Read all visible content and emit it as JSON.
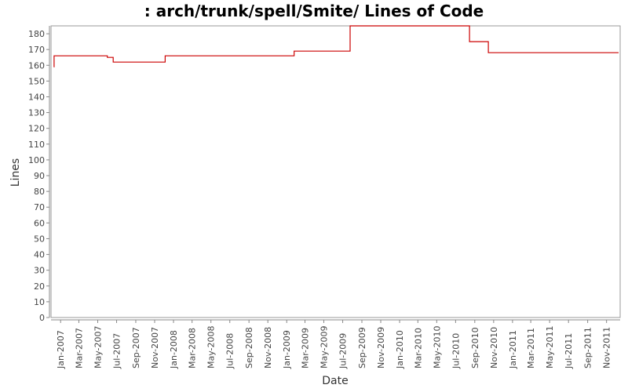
{
  "chart_data": {
    "type": "line",
    "title": ": arch/trunk/spell/Smite/ Lines of Code",
    "xlabel": "Date",
    "ylabel": "Lines",
    "ylim": [
      0,
      185
    ],
    "y_ticks": [
      0,
      10,
      20,
      30,
      40,
      50,
      60,
      70,
      80,
      90,
      100,
      110,
      120,
      130,
      140,
      150,
      160,
      170,
      180
    ],
    "x_ticks": [
      "Jan-2007",
      "Mar-2007",
      "May-2007",
      "Jul-2007",
      "Sep-2007",
      "Nov-2007",
      "Jan-2008",
      "Mar-2008",
      "May-2008",
      "Jul-2008",
      "Sep-2008",
      "Nov-2008",
      "Jan-2009",
      "Mar-2009",
      "May-2009",
      "Jul-2009",
      "Sep-2009",
      "Nov-2009",
      "Jan-2010",
      "Mar-2010",
      "May-2010",
      "Jul-2010",
      "Sep-2010",
      "Nov-2010",
      "Jan-2011",
      "Mar-2011",
      "May-2011",
      "Jul-2011",
      "Sep-2011",
      "Nov-2011"
    ],
    "x_tick_dates": [
      "2007-01-01",
      "2007-03-01",
      "2007-05-01",
      "2007-07-01",
      "2007-09-01",
      "2007-11-01",
      "2008-01-01",
      "2008-03-01",
      "2008-05-01",
      "2008-07-01",
      "2008-09-01",
      "2008-11-01",
      "2009-01-01",
      "2009-03-01",
      "2009-05-01",
      "2009-07-01",
      "2009-09-01",
      "2009-11-01",
      "2010-01-01",
      "2010-03-01",
      "2010-05-01",
      "2010-07-01",
      "2010-09-01",
      "2010-11-01",
      "2011-01-01",
      "2011-03-01",
      "2011-05-01",
      "2011-07-01",
      "2011-09-01",
      "2011-11-01"
    ],
    "xlim": [
      "2006-12-01",
      "2011-12-15"
    ],
    "grid": false,
    "series": [
      {
        "step": true,
        "color": "#cc0000",
        "points": [
          {
            "x": "2006-12-10",
            "y": 159
          },
          {
            "x": "2006-12-11",
            "y": 166
          },
          {
            "x": "2007-06-01",
            "y": 165
          },
          {
            "x": "2007-06-20",
            "y": 162
          },
          {
            "x": "2007-12-05",
            "y": 166
          },
          {
            "x": "2009-01-25",
            "y": 169
          },
          {
            "x": "2009-07-25",
            "y": 185
          },
          {
            "x": "2010-08-15",
            "y": 175
          },
          {
            "x": "2010-10-15",
            "y": 168
          },
          {
            "x": "2011-12-10",
            "y": 168
          }
        ]
      }
    ]
  }
}
